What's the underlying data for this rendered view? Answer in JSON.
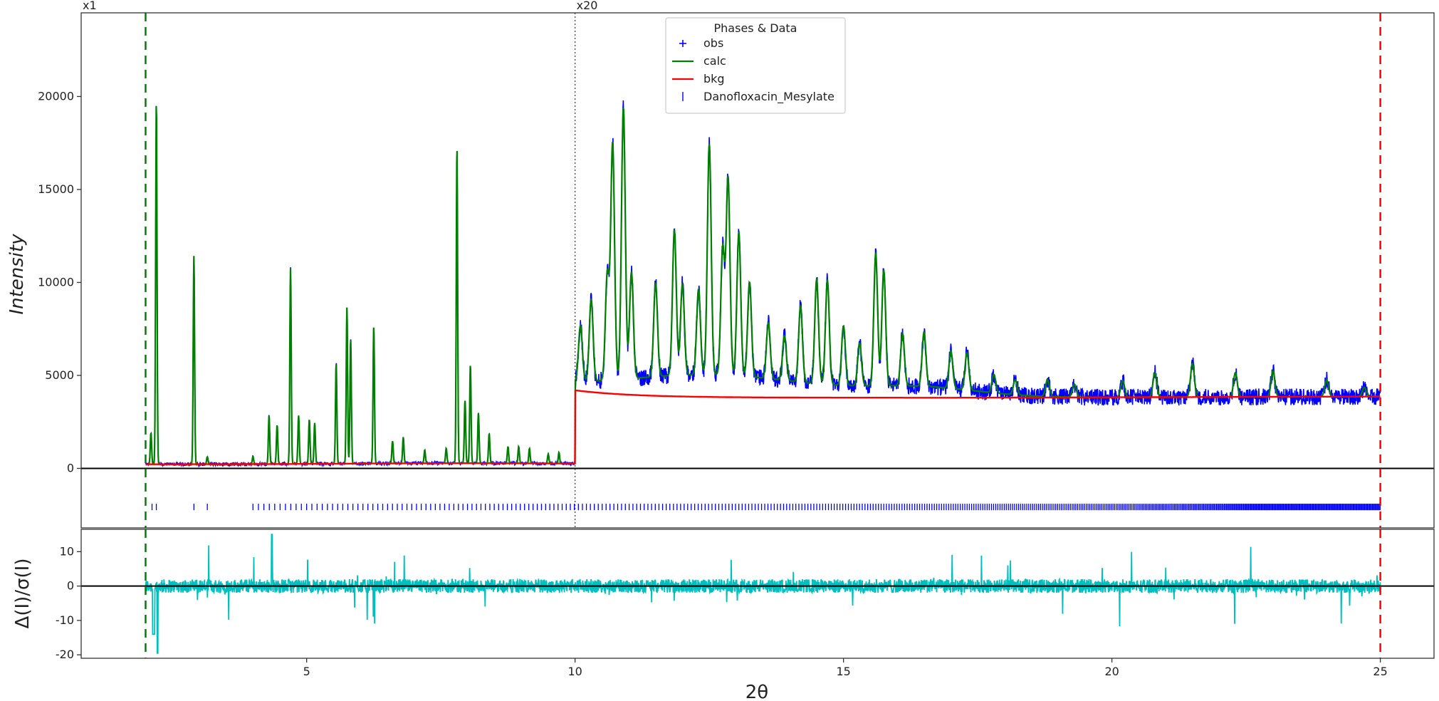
{
  "chart_data": {
    "type": "line",
    "x_label": "2θ",
    "y_label": "Intensity",
    "residual_y_label": "Δ(I)/σ(I)",
    "xlim": [
      0.8,
      26.0
    ],
    "ylim": [
      -3200,
      24500
    ],
    "residual_ylim": [
      -21,
      16.5
    ],
    "x_ticks": [
      5,
      10,
      15,
      20,
      25
    ],
    "y_ticks": [
      0,
      5000,
      10000,
      15000,
      20000
    ],
    "residual_y_ticks": [
      -20,
      -10,
      0,
      10
    ],
    "scale_markers": [
      {
        "label": "x1",
        "x": 0.8
      },
      {
        "label": "x20",
        "x": 10.0
      }
    ],
    "range_limits": {
      "lower": 2.0,
      "upper": 25.0
    },
    "legend": {
      "title": "Phases & Data",
      "placement": "top-center",
      "entries": [
        {
          "label": "obs",
          "marker": "+",
          "color": "#0000ff"
        },
        {
          "label": "calc",
          "marker": "line",
          "color": "#008000"
        },
        {
          "label": "bkg",
          "marker": "line",
          "color": "#ff0000"
        },
        {
          "label": "Danofloxacin_Mesylate",
          "marker": "|",
          "color": "#0000ff"
        }
      ]
    },
    "series": [
      {
        "name": "obs",
        "color": "#0000ff",
        "base_low": 300,
        "base_high": 4200,
        "peaks": [
          [
            2.1,
            2000
          ],
          [
            2.2,
            19800
          ],
          [
            2.9,
            11500
          ],
          [
            3.15,
            700
          ],
          [
            4.0,
            700
          ],
          [
            4.3,
            2900
          ],
          [
            4.45,
            2400
          ],
          [
            4.7,
            10800
          ],
          [
            4.85,
            2900
          ],
          [
            5.05,
            2700
          ],
          [
            5.15,
            2500
          ],
          [
            5.55,
            5700
          ],
          [
            5.75,
            8700
          ],
          [
            5.82,
            7000
          ],
          [
            6.25,
            7700
          ],
          [
            6.6,
            1500
          ],
          [
            6.8,
            1700
          ],
          [
            7.2,
            1000
          ],
          [
            7.6,
            1100
          ],
          [
            7.8,
            17300
          ],
          [
            7.95,
            3700
          ],
          [
            8.05,
            5600
          ],
          [
            8.2,
            3000
          ],
          [
            8.4,
            1900
          ],
          [
            8.75,
            1200
          ],
          [
            8.95,
            1200
          ],
          [
            9.15,
            1100
          ],
          [
            9.5,
            800
          ],
          [
            9.7,
            900
          ],
          [
            10.1,
            7200
          ],
          [
            10.3,
            8600
          ],
          [
            10.6,
            9900
          ],
          [
            10.7,
            16900
          ],
          [
            10.9,
            18800
          ],
          [
            11.05,
            9900
          ],
          [
            11.5,
            9200
          ],
          [
            11.85,
            12000
          ],
          [
            12.0,
            9100
          ],
          [
            12.3,
            8800
          ],
          [
            12.5,
            16600
          ],
          [
            12.75,
            11000
          ],
          [
            12.85,
            14800
          ],
          [
            13.05,
            11900
          ],
          [
            13.25,
            9300
          ],
          [
            13.6,
            7200
          ],
          [
            13.9,
            6600
          ],
          [
            14.2,
            8300
          ],
          [
            14.5,
            9800
          ],
          [
            14.7,
            9800
          ],
          [
            15.0,
            7400
          ],
          [
            15.3,
            6500
          ],
          [
            15.6,
            11300
          ],
          [
            15.75,
            10400
          ],
          [
            16.1,
            7000
          ],
          [
            16.5,
            7100
          ],
          [
            17.0,
            6200
          ],
          [
            17.3,
            6200
          ],
          [
            17.8,
            5200
          ],
          [
            18.2,
            5000
          ],
          [
            18.8,
            5100
          ],
          [
            19.3,
            4900
          ],
          [
            20.2,
            5100
          ],
          [
            20.8,
            5500
          ],
          [
            21.5,
            6000
          ],
          [
            22.3,
            5500
          ],
          [
            23.0,
            5600
          ],
          [
            24.0,
            5100
          ],
          [
            24.7,
            4700
          ]
        ]
      },
      {
        "name": "calc",
        "color": "#008000"
      },
      {
        "name": "bkg",
        "color": "#ff0000"
      },
      {
        "name": "Δ(I)/σ(I)",
        "color": "#00bfbf"
      }
    ]
  }
}
